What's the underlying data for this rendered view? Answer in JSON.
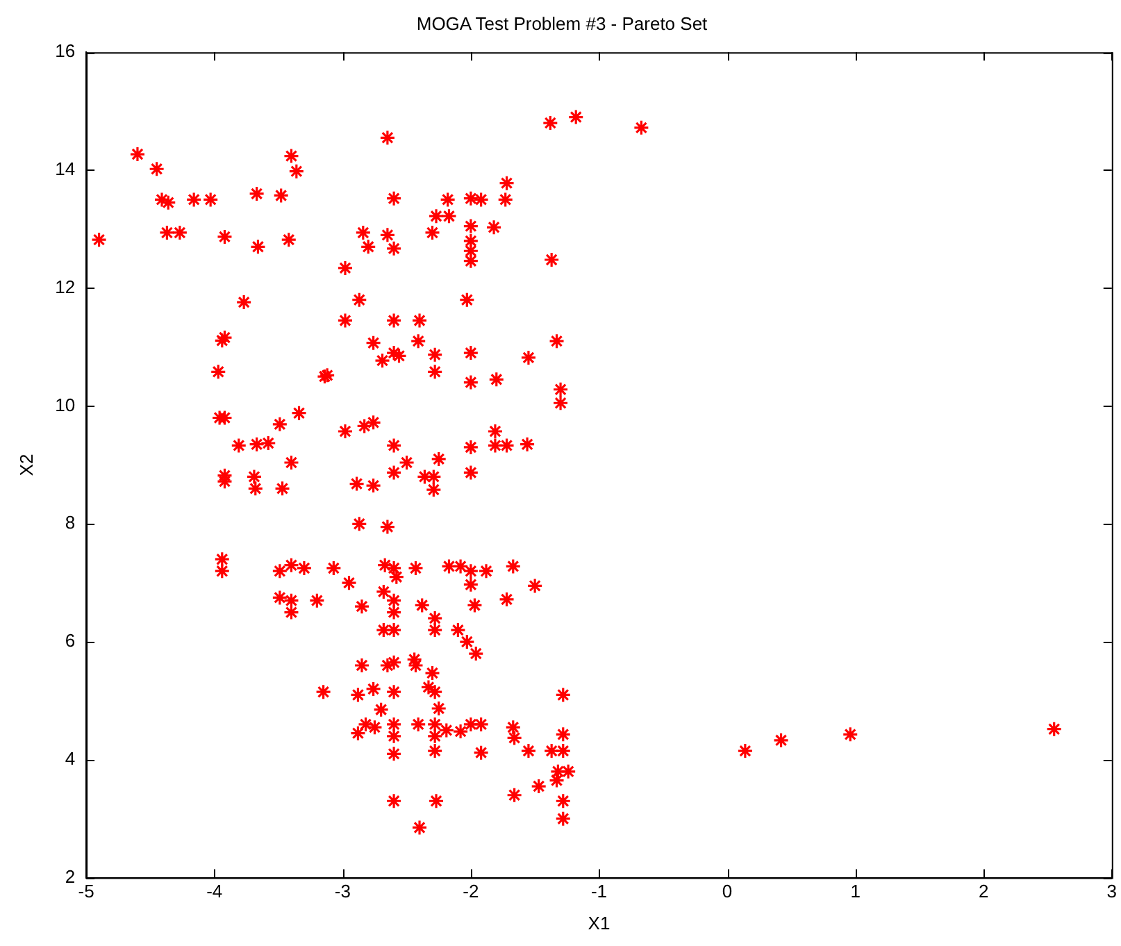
{
  "chart_data": {
    "type": "scatter",
    "title": "MOGA Test Problem #3 - Pareto Set",
    "xlabel": "X1",
    "ylabel": "X2",
    "xlim": [
      -5,
      3
    ],
    "xticks": [
      -5,
      -4,
      -3,
      -2,
      -1,
      0,
      1,
      2,
      3
    ],
    "ylim": [
      2,
      16
    ],
    "yticks": [
      2,
      4,
      6,
      8,
      10,
      12,
      14,
      16
    ],
    "grid": false,
    "legend": false,
    "marker": "cross",
    "series": [
      {
        "color": "#ff0000",
        "x": [
          -4.6,
          -4.45,
          -4.41,
          -4.36,
          -4.16,
          -4.03,
          -4.37,
          -4.27,
          -4.9,
          -3.92,
          -3.67,
          -3.66,
          -3.48,
          -3.4,
          -3.36,
          -3.42,
          -3.77,
          -3.94,
          -3.92,
          -3.97,
          -3.14,
          -3.12,
          -3.96,
          -3.92,
          -3.34,
          -3.49,
          -3.81,
          -3.67,
          -3.58,
          -3.4,
          -3.92,
          -3.92,
          -3.69,
          -3.68,
          -3.47,
          -2.65,
          -1.38,
          -1.18,
          -0.67,
          -2.6,
          -2.18,
          -2.0,
          -1.92,
          -1.72,
          -1.73,
          -2.27,
          -2.17,
          -2.3,
          -2.0,
          -2.0,
          -2.0,
          -2.0,
          -1.82,
          -2.84,
          -2.8,
          -2.65,
          -2.6,
          -2.98,
          -1.37,
          -2.87,
          -2.98,
          -2.6,
          -2.4,
          -2.03,
          -2.76,
          -2.6,
          -2.56,
          -2.69,
          -2.41,
          -2.28,
          -2.28,
          -2.0,
          -1.55,
          -1.33,
          -2.0,
          -1.8,
          -1.3,
          -1.3,
          -2.98,
          -2.83,
          -2.76,
          -2.6,
          -2.5,
          -2.25,
          -2.6,
          -2.36,
          -2.29,
          -2.0,
          -2.0,
          -1.81,
          -1.72,
          -1.56,
          -1.81,
          -2.89,
          -2.76,
          -2.29,
          -3.94,
          -3.94,
          -3.49,
          -3.4,
          -3.3,
          -3.07,
          -2.95,
          -2.85,
          -3.49,
          -3.4,
          -3.4,
          -3.2,
          -2.67,
          -2.6,
          -2.58,
          -2.68,
          -2.6,
          -2.6,
          -2.68,
          -2.6,
          -2.43,
          -2.17,
          -2.08,
          -2.0,
          -1.88,
          -1.67,
          -2.0,
          -1.72,
          -1.5,
          -1.97,
          -2.38,
          -2.28,
          -2.28,
          -2.1,
          -2.03,
          -1.96,
          -2.87,
          -2.65,
          -2.85,
          -2.65,
          -2.6,
          -2.44,
          -2.43,
          -2.3,
          -2.33,
          -2.28,
          -2.25,
          -3.15,
          -2.88,
          -2.76,
          -2.6,
          -2.7,
          -2.82,
          -2.75,
          -2.88,
          -2.6,
          -2.6,
          -2.6,
          -2.41,
          -2.28,
          -2.19,
          -2.08,
          -2.28,
          -2.0,
          -1.92,
          -1.67,
          -1.66,
          -1.55,
          -1.37,
          -1.28,
          -1.28,
          -1.28,
          -1.32,
          -1.24,
          -1.33,
          -1.47,
          -1.66,
          -1.28,
          -1.28,
          -2.6,
          -2.27,
          -2.4,
          -2.28,
          -1.92,
          0.14,
          0.42,
          0.96,
          2.55
        ],
        "values": [
          14.27,
          14.02,
          13.5,
          13.45,
          13.5,
          13.5,
          12.94,
          12.94,
          12.82,
          12.87,
          13.6,
          12.7,
          13.57,
          14.24,
          13.98,
          12.82,
          11.76,
          11.11,
          11.16,
          10.58,
          10.5,
          10.52,
          9.8,
          9.8,
          9.88,
          9.69,
          9.33,
          9.35,
          9.37,
          9.04,
          8.82,
          8.72,
          8.8,
          8.6,
          8.6,
          14.55,
          14.8,
          14.9,
          14.72,
          13.52,
          13.5,
          13.52,
          13.5,
          13.78,
          13.5,
          13.22,
          13.22,
          12.94,
          13.05,
          12.8,
          12.63,
          12.46,
          13.03,
          12.94,
          12.7,
          12.9,
          12.67,
          12.34,
          12.48,
          11.8,
          11.45,
          11.45,
          11.45,
          11.8,
          11.07,
          10.9,
          10.85,
          10.77,
          11.1,
          10.87,
          10.58,
          10.9,
          10.82,
          11.1,
          10.4,
          10.45,
          10.28,
          10.05,
          9.57,
          9.66,
          9.72,
          9.33,
          9.04,
          9.1,
          8.87,
          8.8,
          8.8,
          8.87,
          9.3,
          9.33,
          9.33,
          9.35,
          9.57,
          8.68,
          8.65,
          8.58,
          7.4,
          7.2,
          7.2,
          7.3,
          7.25,
          7.25,
          7.0,
          6.6,
          6.75,
          6.7,
          6.5,
          6.7,
          7.3,
          7.25,
          7.1,
          6.85,
          6.7,
          6.5,
          6.2,
          6.2,
          7.25,
          7.28,
          7.28,
          7.2,
          7.2,
          7.28,
          6.97,
          6.72,
          6.95,
          6.62,
          6.62,
          6.4,
          6.2,
          6.2,
          6.0,
          5.8,
          8.0,
          7.95,
          5.6,
          5.6,
          5.65,
          5.7,
          5.6,
          5.47,
          5.23,
          5.15,
          4.87,
          5.15,
          5.1,
          5.2,
          5.15,
          4.85,
          4.6,
          4.55,
          4.45,
          4.6,
          4.4,
          4.1,
          4.6,
          4.6,
          4.5,
          4.48,
          4.4,
          4.6,
          4.6,
          4.55,
          4.37,
          4.15,
          4.15,
          4.15,
          4.43,
          5.1,
          3.8,
          3.8,
          3.65,
          3.55,
          3.4,
          3.3,
          3.0,
          3.3,
          3.3,
          2.85,
          4.15,
          4.12,
          4.15,
          4.33,
          4.43,
          4.52
        ]
      }
    ]
  }
}
